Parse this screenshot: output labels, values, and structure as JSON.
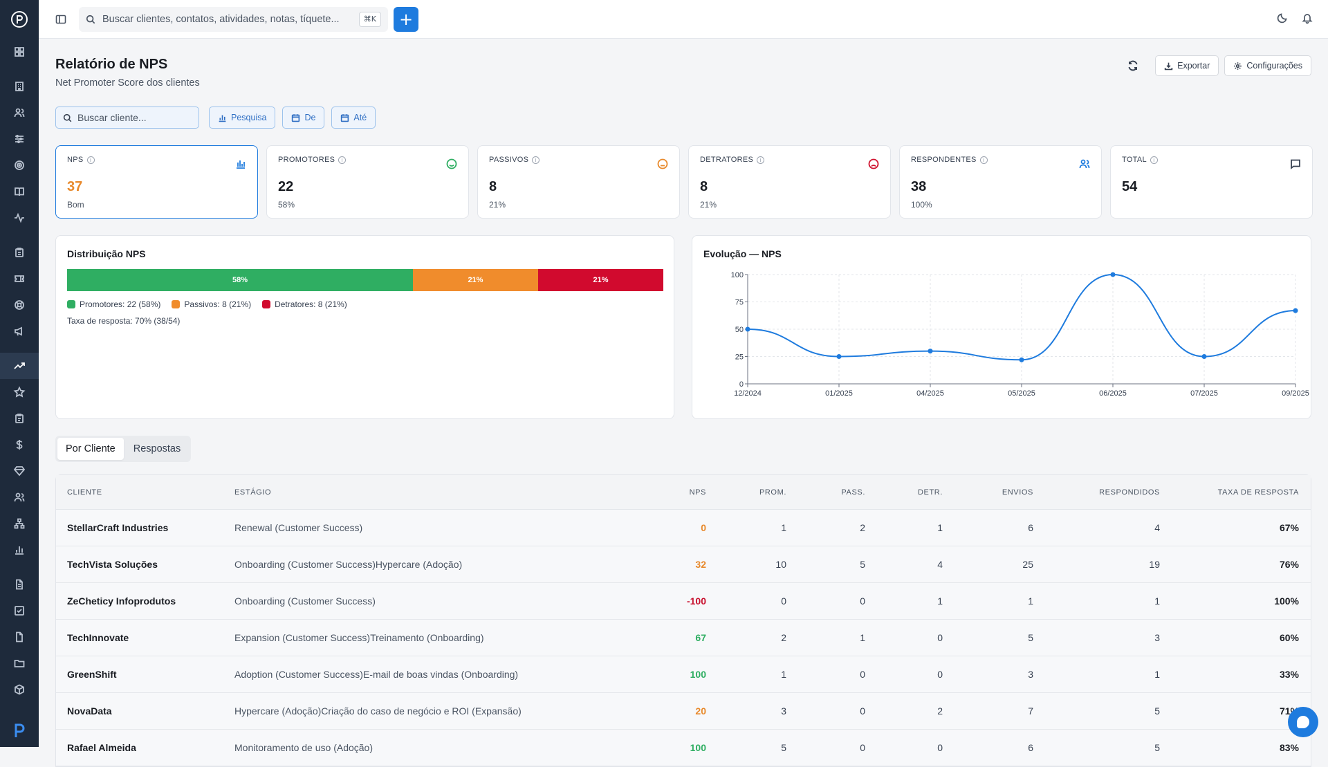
{
  "topbar": {
    "search_placeholder": "Buscar clientes, contatos, atividades, notas, tíquete...",
    "shortcut": "⌘K",
    "new_label": "+"
  },
  "header": {
    "title": "Relatório de NPS",
    "subtitle": "Net Promoter Score dos clientes",
    "export_label": "Exportar",
    "settings_label": "Configurações"
  },
  "filters": {
    "client_placeholder": "Buscar cliente...",
    "survey_label": "Pesquisa",
    "from_label": "De",
    "to_label": "Até"
  },
  "kpis": [
    {
      "label": "NPS",
      "value": "37",
      "sub": "Bom",
      "value_color": "#e8892b",
      "icon": "bar-chart-icon",
      "icon_color": "#1e7bde"
    },
    {
      "label": "PROMOTORES",
      "value": "22",
      "sub": "58%",
      "value_color": "#1a1d23",
      "icon": "smile-icon",
      "icon_color": "#2fae62"
    },
    {
      "label": "PASSIVOS",
      "value": "8",
      "sub": "21%",
      "value_color": "#1a1d23",
      "icon": "neutral-face-icon",
      "icon_color": "#e8892b"
    },
    {
      "label": "DETRATORES",
      "value": "8",
      "sub": "21%",
      "value_color": "#1a1d23",
      "icon": "frown-icon",
      "icon_color": "#d0122e"
    },
    {
      "label": "RESPONDENTES",
      "value": "38",
      "sub": "100%",
      "value_color": "#1a1d23",
      "icon": "users-icon",
      "icon_color": "#1e7bde"
    },
    {
      "label": "TOTAL",
      "value": "54",
      "sub": "",
      "value_color": "#1a1d23",
      "icon": "message-icon",
      "icon_color": "#374151"
    }
  ],
  "distribution": {
    "title": "Distribuição NPS",
    "segments": [
      {
        "label": "58%",
        "value": 58,
        "color": "#2fae62"
      },
      {
        "label": "21%",
        "value": 21,
        "color": "#f08c2c"
      },
      {
        "label": "21%",
        "value": 21,
        "color": "#d10a2e"
      }
    ],
    "legend": [
      {
        "label": "Promotores: 22 (58%)",
        "color": "#2fae62"
      },
      {
        "label": "Passivos: 8 (21%)",
        "color": "#f08c2c"
      },
      {
        "label": "Detratores: 8 (21%)",
        "color": "#d10a2e"
      }
    ],
    "response_rate": "Taxa de resposta: 70% (38/54)"
  },
  "chart_data": {
    "type": "line",
    "title": "Evolução — NPS",
    "x": [
      "12/2024",
      "01/2025",
      "04/2025",
      "05/2025",
      "06/2025",
      "07/2025",
      "09/2025"
    ],
    "series": [
      {
        "values": [
          50,
          25,
          30,
          22,
          100,
          25,
          67
        ],
        "color": "#1e7bde"
      }
    ],
    "yticks": [
      0,
      25,
      50,
      75,
      100
    ],
    "ylim": [
      0,
      100
    ],
    "grid": true
  },
  "tabs": [
    {
      "label": "Por Cliente",
      "active": true
    },
    {
      "label": "Respostas",
      "active": false
    }
  ],
  "table": {
    "headers": [
      "CLIENTE",
      "ESTÁGIO",
      "NPS",
      "PROM.",
      "PASS.",
      "DETR.",
      "ENVIOS",
      "RESPONDIDOS",
      "TAXA DE RESPOSTA"
    ],
    "rows": [
      {
        "client": "StellarCraft Industries",
        "stage": "Renewal (Customer Success)",
        "nps": "0",
        "nps_color": "#e8892b",
        "prom": "1",
        "pass": "2",
        "detr": "1",
        "env": "6",
        "resp": "4",
        "rate": "67%"
      },
      {
        "client": "TechVista Soluções",
        "stage": "Onboarding (Customer Success)Hypercare (Adoção)",
        "nps": "32",
        "nps_color": "#e8892b",
        "prom": "10",
        "pass": "5",
        "detr": "4",
        "env": "25",
        "resp": "19",
        "rate": "76%"
      },
      {
        "client": "ZeCheticy Infoprodutos",
        "stage": "Onboarding (Customer Success)",
        "nps": "-100",
        "nps_color": "#c8102e",
        "prom": "0",
        "pass": "0",
        "detr": "1",
        "env": "1",
        "resp": "1",
        "rate": "100%"
      },
      {
        "client": "TechInnovate",
        "stage": "Expansion (Customer Success)Treinamento (Onboarding)",
        "nps": "67",
        "nps_color": "#2fae62",
        "prom": "2",
        "pass": "1",
        "detr": "0",
        "env": "5",
        "resp": "3",
        "rate": "60%"
      },
      {
        "client": "GreenShift",
        "stage": "Adoption (Customer Success)E-mail de boas vindas (Onboarding)",
        "nps": "100",
        "nps_color": "#2fae62",
        "prom": "1",
        "pass": "0",
        "detr": "0",
        "env": "3",
        "resp": "1",
        "rate": "33%"
      },
      {
        "client": "NovaData",
        "stage": "Hypercare (Adoção)Criação do caso de negócio e ROI (Expansão)",
        "nps": "20",
        "nps_color": "#e8892b",
        "prom": "3",
        "pass": "0",
        "detr": "2",
        "env": "7",
        "resp": "5",
        "rate": "71%"
      },
      {
        "client": "Rafael Almeida",
        "stage": "Monitoramento de uso (Adoção)",
        "nps": "100",
        "nps_color": "#2fae62",
        "prom": "5",
        "pass": "0",
        "detr": "0",
        "env": "6",
        "resp": "5",
        "rate": "83%"
      }
    ]
  }
}
